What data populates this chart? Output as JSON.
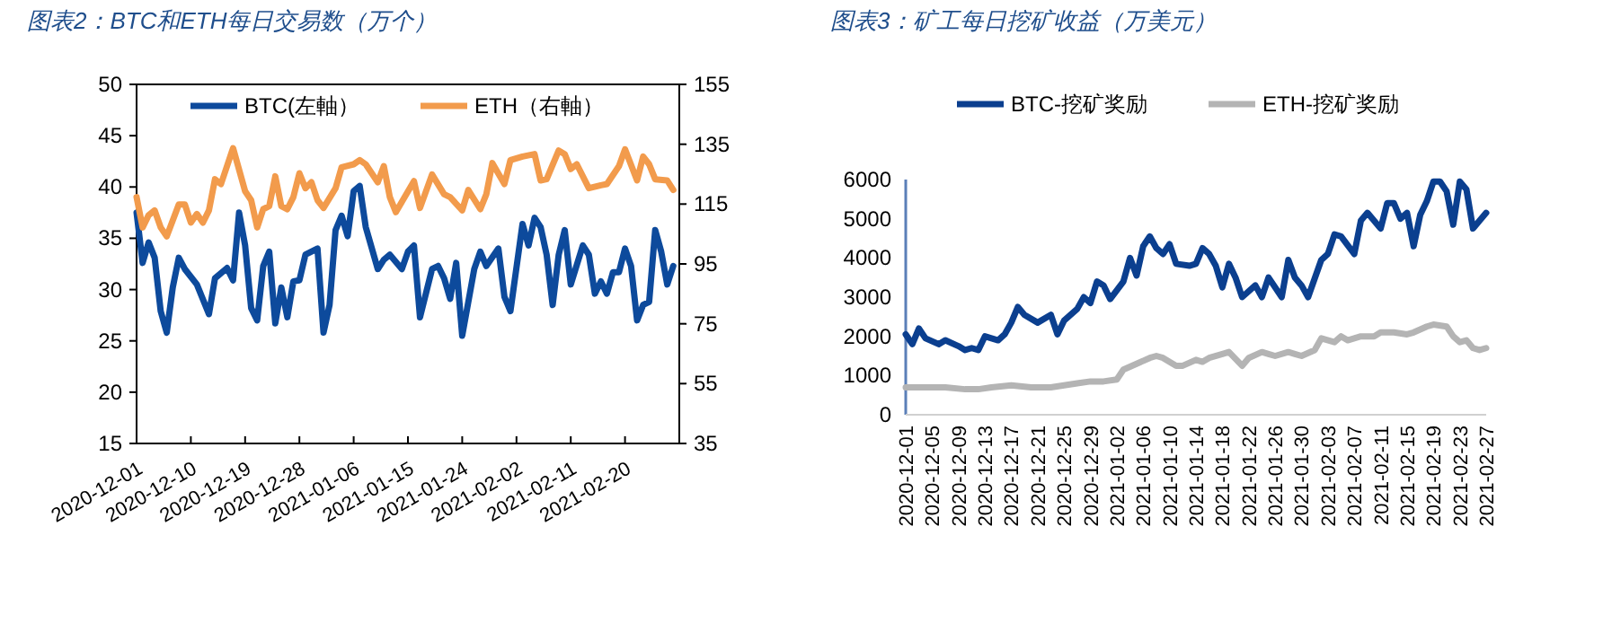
{
  "chart_data": [
    {
      "type": "line",
      "title": "图表2：BTC和ETH每日交易数（万个）",
      "legend": "top",
      "xlim": [
        "2020-12-01",
        "2021-03-01"
      ],
      "xticks": [
        "2020-12-01",
        "2020-12-10",
        "2020-12-19",
        "2020-12-28",
        "2021-01-06",
        "2021-01-15",
        "2021-01-24",
        "2021-02-02",
        "2021-02-11",
        "2021-02-20"
      ],
      "ylim": [
        15,
        50
      ],
      "yticks": [
        15,
        20,
        25,
        30,
        35,
        40,
        45,
        50
      ],
      "y2lim": [
        35,
        155
      ],
      "y2ticks": [
        35,
        55,
        75,
        95,
        115,
        135,
        155
      ],
      "series": [
        {
          "name": "BTC(左軸）",
          "color": "#0d4a9c",
          "x": [
            "2020-12-01",
            "2020-12-02",
            "2020-12-03",
            "2020-12-04",
            "2020-12-05",
            "2020-12-06",
            "2020-12-07",
            "2020-12-08",
            "2020-12-09",
            "2020-12-11",
            "2020-12-13",
            "2020-12-14",
            "2020-12-16",
            "2020-12-17",
            "2020-12-18",
            "2020-12-19",
            "2020-12-20",
            "2020-12-21",
            "2020-12-22",
            "2020-12-23",
            "2020-12-24",
            "2020-12-25",
            "2020-12-26",
            "2020-12-27",
            "2020-12-28",
            "2020-12-29",
            "2020-12-31",
            "2021-01-01",
            "2021-01-02",
            "2021-01-03",
            "2021-01-04",
            "2021-01-05",
            "2021-01-06",
            "2021-01-07",
            "2021-01-08",
            "2021-01-10",
            "2021-01-11",
            "2021-01-12",
            "2021-01-14",
            "2021-01-15",
            "2021-01-16",
            "2021-01-17",
            "2021-01-19",
            "2021-01-20",
            "2021-01-21",
            "2021-01-22",
            "2021-01-23",
            "2021-01-24",
            "2021-01-26",
            "2021-01-27",
            "2021-01-28",
            "2021-01-30",
            "2021-01-31",
            "2021-02-01",
            "2021-02-03",
            "2021-02-04",
            "2021-02-05",
            "2021-02-06",
            "2021-02-07",
            "2021-02-08",
            "2021-02-09",
            "2021-02-10",
            "2021-02-11",
            "2021-02-13",
            "2021-02-14",
            "2021-02-15",
            "2021-02-16",
            "2021-02-17",
            "2021-02-18",
            "2021-02-19",
            "2021-02-20",
            "2021-02-21",
            "2021-02-22",
            "2021-02-23",
            "2021-02-24",
            "2021-02-25",
            "2021-02-26",
            "2021-02-27",
            "2021-02-28"
          ],
          "values": [
            37.5,
            32.6,
            34.6,
            33.1,
            27.9,
            25.8,
            30.2,
            33.1,
            32.0,
            30.5,
            27.6,
            31.1,
            32.1,
            30.9,
            37.5,
            34.3,
            28.2,
            27.0,
            32.3,
            33.7,
            26.7,
            30.2,
            27.3,
            30.8,
            30.9,
            33.4,
            34.0,
            25.8,
            28.5,
            35.8,
            37.2,
            35.2,
            39.6,
            40.1,
            36.1,
            32.0,
            32.9,
            33.4,
            32.0,
            33.7,
            34.3,
            27.3,
            32.0,
            32.3,
            31.1,
            29.1,
            32.6,
            25.5,
            32.0,
            33.7,
            32.3,
            34.0,
            29.3,
            27.9,
            36.4,
            34.3,
            37.0,
            36.1,
            33.4,
            28.5,
            33.4,
            35.8,
            30.5,
            34.3,
            33.4,
            29.6,
            30.8,
            29.6,
            31.7,
            31.7,
            34.0,
            32.3,
            27.0,
            28.5,
            28.8,
            35.8,
            33.7,
            30.5,
            32.3
          ]
        },
        {
          "name": "ETH（右軸）",
          "color": "#f29b4c",
          "axis": "y2",
          "x": [
            "2020-12-01",
            "2020-12-02",
            "2020-12-03",
            "2020-12-04",
            "2020-12-05",
            "2020-12-06",
            "2020-12-08",
            "2020-12-09",
            "2020-12-10",
            "2020-12-11",
            "2020-12-12",
            "2020-12-13",
            "2020-12-14",
            "2020-12-15",
            "2020-12-17",
            "2020-12-19",
            "2020-12-20",
            "2020-12-21",
            "2020-12-22",
            "2020-12-23",
            "2020-12-24",
            "2020-12-25",
            "2020-12-26",
            "2020-12-27",
            "2020-12-28",
            "2020-12-29",
            "2020-12-30",
            "2020-12-31",
            "2021-01-01",
            "2021-01-03",
            "2021-01-04",
            "2021-01-06",
            "2021-01-07",
            "2021-01-08",
            "2021-01-10",
            "2021-01-11",
            "2021-01-12",
            "2021-01-13",
            "2021-01-16",
            "2021-01-17",
            "2021-01-19",
            "2021-01-21",
            "2021-01-22",
            "2021-01-24",
            "2021-01-25",
            "2021-01-27",
            "2021-01-28",
            "2021-01-29",
            "2021-01-31",
            "2021-02-01",
            "2021-02-03",
            "2021-02-05",
            "2021-02-06",
            "2021-02-07",
            "2021-02-09",
            "2021-02-10",
            "2021-02-11",
            "2021-02-12",
            "2021-02-14",
            "2021-02-16",
            "2021-02-17",
            "2021-02-19",
            "2021-02-20",
            "2021-02-22",
            "2021-02-23",
            "2021-02-24",
            "2021-02-25",
            "2021-02-27",
            "2021-02-28"
          ],
          "values": [
            117.3,
            107.2,
            111.3,
            112.9,
            107.2,
            104.2,
            114.9,
            114.9,
            108.8,
            111.7,
            108.8,
            112.9,
            123.3,
            121.7,
            133.7,
            119.3,
            116.3,
            107.2,
            113.3,
            114.3,
            124.3,
            114.3,
            113.3,
            117.3,
            125.3,
            120.3,
            122.3,
            116.3,
            113.7,
            120.3,
            127.3,
            128.3,
            129.7,
            128.3,
            122.3,
            127.7,
            117.3,
            112.3,
            122.7,
            113.7,
            124.9,
            118.3,
            117.3,
            112.9,
            119.7,
            113.3,
            118.3,
            128.7,
            121.7,
            129.7,
            130.9,
            131.7,
            122.9,
            123.3,
            132.9,
            131.7,
            126.7,
            128.3,
            120.3,
            121.3,
            121.7,
            127.7,
            133.3,
            122.9,
            130.9,
            128.3,
            123.3,
            122.9,
            119.7
          ]
        }
      ]
    },
    {
      "type": "line",
      "title": "图表3：矿工每日挖矿收益（万美元）",
      "legend": "top",
      "xlim": [
        "2020-12-01",
        "2021-02-27"
      ],
      "xticks": [
        "2020-12-01",
        "2020-12-05",
        "2020-12-09",
        "2020-12-13",
        "2020-12-17",
        "2020-12-21",
        "2020-12-25",
        "2020-12-29",
        "2021-01-02",
        "2021-01-06",
        "2021-01-10",
        "2021-01-14",
        "2021-01-18",
        "2021-01-22",
        "2021-01-26",
        "2021-01-30",
        "2021-02-03",
        "2021-02-07",
        "2021-02-11",
        "2021-02-15",
        "2021-02-19",
        "2021-02-23",
        "2021-02-27"
      ],
      "ylim": [
        0,
        6000
      ],
      "yticks": [
        0,
        1000,
        2000,
        3000,
        4000,
        5000,
        6000
      ],
      "series": [
        {
          "name": "BTC-挖矿奖励",
          "color": "#0b3f8f",
          "x": [
            "2020-12-01",
            "2020-12-02",
            "2020-12-03",
            "2020-12-04",
            "2020-12-06",
            "2020-12-07",
            "2020-12-09",
            "2020-12-10",
            "2020-12-11",
            "2020-12-12",
            "2020-12-13",
            "2020-12-15",
            "2020-12-16",
            "2020-12-17",
            "2020-12-18",
            "2020-12-19",
            "2020-12-21",
            "2020-12-23",
            "2020-12-24",
            "2020-12-25",
            "2020-12-27",
            "2020-12-28",
            "2020-12-29",
            "2020-12-30",
            "2020-12-31",
            "2021-01-01",
            "2021-01-03",
            "2021-01-04",
            "2021-01-05",
            "2021-01-06",
            "2021-01-07",
            "2021-01-08",
            "2021-01-09",
            "2021-01-10",
            "2021-01-11",
            "2021-01-13",
            "2021-01-14",
            "2021-01-15",
            "2021-01-16",
            "2021-01-17",
            "2021-01-18",
            "2021-01-19",
            "2021-01-20",
            "2021-01-21",
            "2021-01-23",
            "2021-01-24",
            "2021-01-25",
            "2021-01-27",
            "2021-01-28",
            "2021-01-29",
            "2021-01-30",
            "2021-01-31",
            "2021-02-02",
            "2021-02-03",
            "2021-02-04",
            "2021-02-05",
            "2021-02-07",
            "2021-02-08",
            "2021-02-09",
            "2021-02-11",
            "2021-02-12",
            "2021-02-13",
            "2021-02-14",
            "2021-02-15",
            "2021-02-16",
            "2021-02-17",
            "2021-02-18",
            "2021-02-19",
            "2021-02-20",
            "2021-02-21",
            "2021-02-22",
            "2021-02-23",
            "2021-02-24",
            "2021-02-25",
            "2021-02-26",
            "2021-02-27"
          ],
          "values": [
            2050,
            1800,
            2200,
            1950,
            1800,
            1900,
            1750,
            1650,
            1700,
            1650,
            2000,
            1900,
            2050,
            2350,
            2750,
            2550,
            2350,
            2550,
            2050,
            2400,
            2700,
            3000,
            2850,
            3400,
            3300,
            2950,
            3400,
            4000,
            3550,
            4300,
            4550,
            4250,
            4100,
            4350,
            3850,
            3800,
            3850,
            4250,
            4100,
            3800,
            3250,
            3850,
            3500,
            3000,
            3300,
            3000,
            3500,
            3000,
            3950,
            3500,
            3300,
            3000,
            3950,
            4100,
            4600,
            4550,
            4100,
            4950,
            5150,
            4750,
            5400,
            5400,
            5000,
            5150,
            4300,
            5100,
            5450,
            5950,
            5950,
            5700,
            4850,
            5950,
            5750,
            4750,
            4950,
            5150
          ]
        },
        {
          "name": "ETH-挖矿奖励",
          "color": "#b4b4b4",
          "x": [
            "2020-12-01",
            "2020-12-04",
            "2020-12-07",
            "2020-12-10",
            "2020-12-12",
            "2020-12-14",
            "2020-12-17",
            "2020-12-20",
            "2020-12-22",
            "2020-12-23",
            "2020-12-25",
            "2020-12-27",
            "2020-12-29",
            "2020-12-31",
            "2021-01-02",
            "2021-01-03",
            "2021-01-05",
            "2021-01-07",
            "2021-01-08",
            "2021-01-09",
            "2021-01-11",
            "2021-01-12",
            "2021-01-14",
            "2021-01-15",
            "2021-01-16",
            "2021-01-18",
            "2021-01-19",
            "2021-01-21",
            "2021-01-22",
            "2021-01-24",
            "2021-01-25",
            "2021-01-26",
            "2021-01-28",
            "2021-01-29",
            "2021-01-30",
            "2021-02-01",
            "2021-02-02",
            "2021-02-04",
            "2021-02-05",
            "2021-02-06",
            "2021-02-08",
            "2021-02-10",
            "2021-02-11",
            "2021-02-13",
            "2021-02-15",
            "2021-02-16",
            "2021-02-18",
            "2021-02-19",
            "2021-02-21",
            "2021-02-22",
            "2021-02-23",
            "2021-02-24",
            "2021-02-25",
            "2021-02-26",
            "2021-02-27"
          ],
          "values": [
            700,
            700,
            700,
            650,
            650,
            700,
            750,
            700,
            700,
            700,
            750,
            800,
            850,
            850,
            900,
            1150,
            1300,
            1450,
            1500,
            1450,
            1250,
            1250,
            1400,
            1350,
            1450,
            1550,
            1600,
            1250,
            1450,
            1600,
            1550,
            1500,
            1600,
            1550,
            1500,
            1650,
            1950,
            1850,
            2000,
            1900,
            2000,
            2000,
            2100,
            2100,
            2050,
            2100,
            2250,
            2300,
            2250,
            2000,
            1850,
            1900,
            1700,
            1650,
            1700
          ]
        }
      ]
    }
  ]
}
